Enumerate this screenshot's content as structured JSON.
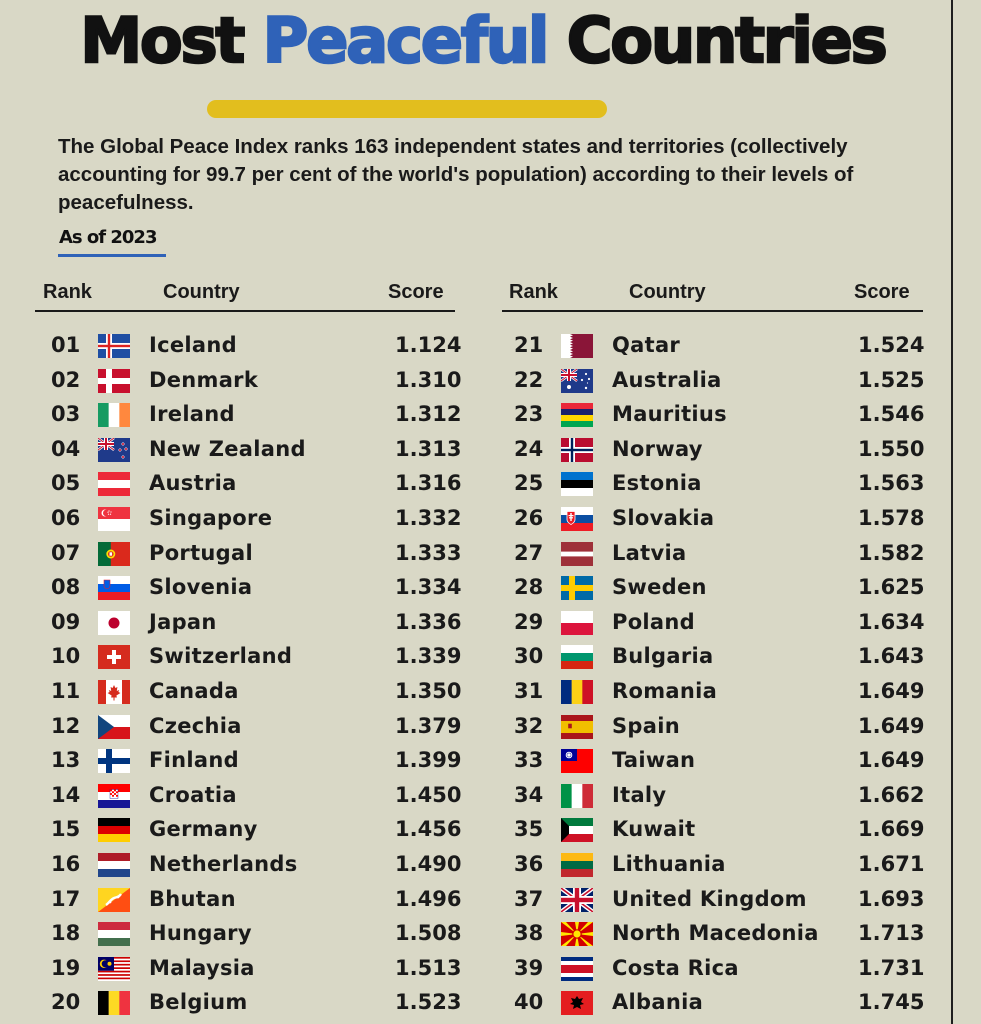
{
  "title": {
    "part1": "Most",
    "accent": "Peaceful",
    "part2": "Countries"
  },
  "description": "The Global Peace Index ranks 163 independent states and territories (collectively accounting for 99.7 per cent of the world's population) according to their levels of peacefulness.",
  "as_of": "As of 2023",
  "columns": {
    "rank": "Rank",
    "country": "Country",
    "score": "Score"
  },
  "colors": {
    "background": "#d9d8c6",
    "accent_blue": "#2f62b8",
    "accent_yellow": "#e2be1e",
    "text": "#1a1a1a"
  },
  "chart_data": {
    "type": "table",
    "columns": [
      "Rank",
      "Country",
      "Score"
    ],
    "rows": [
      {
        "rank": "01",
        "country": "Iceland",
        "score": "1.124",
        "flag": "iceland-flag"
      },
      {
        "rank": "02",
        "country": "Denmark",
        "score": "1.310",
        "flag": "denmark-flag"
      },
      {
        "rank": "03",
        "country": "Ireland",
        "score": "1.312",
        "flag": "ireland-flag"
      },
      {
        "rank": "04",
        "country": "New Zealand",
        "score": "1.313",
        "flag": "new-zealand-flag"
      },
      {
        "rank": "05",
        "country": "Austria",
        "score": "1.316",
        "flag": "austria-flag"
      },
      {
        "rank": "06",
        "country": "Singapore",
        "score": "1.332",
        "flag": "singapore-flag"
      },
      {
        "rank": "07",
        "country": "Portugal",
        "score": "1.333",
        "flag": "portugal-flag"
      },
      {
        "rank": "08",
        "country": "Slovenia",
        "score": "1.334",
        "flag": "slovenia-flag"
      },
      {
        "rank": "09",
        "country": "Japan",
        "score": "1.336",
        "flag": "japan-flag"
      },
      {
        "rank": "10",
        "country": "Switzerland",
        "score": "1.339",
        "flag": "switzerland-flag"
      },
      {
        "rank": "11",
        "country": "Canada",
        "score": "1.350",
        "flag": "canada-flag"
      },
      {
        "rank": "12",
        "country": "Czechia",
        "score": "1.379",
        "flag": "czechia-flag"
      },
      {
        "rank": "13",
        "country": "Finland",
        "score": "1.399",
        "flag": "finland-flag"
      },
      {
        "rank": "14",
        "country": "Croatia",
        "score": "1.450",
        "flag": "croatia-flag"
      },
      {
        "rank": "15",
        "country": "Germany",
        "score": "1.456",
        "flag": "germany-flag"
      },
      {
        "rank": "16",
        "country": "Netherlands",
        "score": "1.490",
        "flag": "netherlands-flag"
      },
      {
        "rank": "17",
        "country": "Bhutan",
        "score": "1.496",
        "flag": "bhutan-flag"
      },
      {
        "rank": "18",
        "country": "Hungary",
        "score": "1.508",
        "flag": "hungary-flag"
      },
      {
        "rank": "19",
        "country": "Malaysia",
        "score": "1.513",
        "flag": "malaysia-flag"
      },
      {
        "rank": "20",
        "country": "Belgium",
        "score": "1.523",
        "flag": "belgium-flag"
      },
      {
        "rank": "21",
        "country": "Qatar",
        "score": "1.524",
        "flag": "qatar-flag"
      },
      {
        "rank": "22",
        "country": "Australia",
        "score": "1.525",
        "flag": "australia-flag"
      },
      {
        "rank": "23",
        "country": "Mauritius",
        "score": "1.546",
        "flag": "mauritius-flag"
      },
      {
        "rank": "24",
        "country": "Norway",
        "score": "1.550",
        "flag": "norway-flag"
      },
      {
        "rank": "25",
        "country": "Estonia",
        "score": "1.563",
        "flag": "estonia-flag"
      },
      {
        "rank": "26",
        "country": "Slovakia",
        "score": "1.578",
        "flag": "slovakia-flag"
      },
      {
        "rank": "27",
        "country": "Latvia",
        "score": "1.582",
        "flag": "latvia-flag"
      },
      {
        "rank": "28",
        "country": "Sweden",
        "score": "1.625",
        "flag": "sweden-flag"
      },
      {
        "rank": "29",
        "country": "Poland",
        "score": "1.634",
        "flag": "poland-flag"
      },
      {
        "rank": "30",
        "country": "Bulgaria",
        "score": "1.643",
        "flag": "bulgaria-flag"
      },
      {
        "rank": "31",
        "country": "Romania",
        "score": "1.649",
        "flag": "romania-flag"
      },
      {
        "rank": "32",
        "country": "Spain",
        "score": "1.649",
        "flag": "spain-flag"
      },
      {
        "rank": "33",
        "country": "Taiwan",
        "score": "1.649",
        "flag": "taiwan-flag"
      },
      {
        "rank": "34",
        "country": "Italy",
        "score": "1.662",
        "flag": "italy-flag"
      },
      {
        "rank": "35",
        "country": "Kuwait",
        "score": "1.669",
        "flag": "kuwait-flag"
      },
      {
        "rank": "36",
        "country": "Lithuania",
        "score": "1.671",
        "flag": "lithuania-flag"
      },
      {
        "rank": "37",
        "country": "United Kingdom",
        "score": "1.693",
        "flag": "united-kingdom-flag"
      },
      {
        "rank": "38",
        "country": "North Macedonia",
        "score": "1.713",
        "flag": "north-macedonia-flag"
      },
      {
        "rank": "39",
        "country": "Costa Rica",
        "score": "1.731",
        "flag": "costa-rica-flag"
      },
      {
        "rank": "40",
        "country": "Albania",
        "score": "1.745",
        "flag": "albania-flag"
      }
    ]
  }
}
